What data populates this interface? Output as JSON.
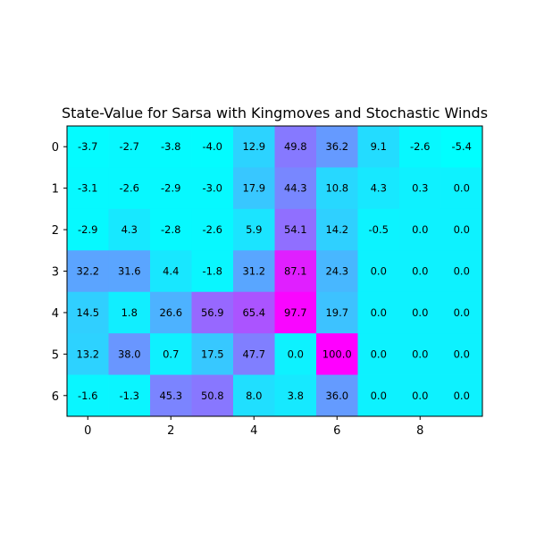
{
  "chart_data": {
    "type": "heatmap",
    "title": "State-Value for Sarsa with Kingmoves and Stochastic Winds",
    "xlabel": "",
    "ylabel": "",
    "colormap": "cool",
    "color_range": [
      -5.4,
      100.0
    ],
    "colors": {
      "low": "#00ffff",
      "high": "#ff00ff",
      "axis": "#000000",
      "text": "#000000"
    },
    "x_ticks": [
      0,
      2,
      4,
      6,
      8
    ],
    "y_ticks": [
      0,
      1,
      2,
      3,
      4,
      5,
      6
    ],
    "x_tick_labels": [
      "0",
      "2",
      "4",
      "6",
      "8"
    ],
    "y_tick_labels": [
      "0",
      "1",
      "2",
      "3",
      "4",
      "5",
      "6"
    ],
    "grid": false,
    "values": [
      [
        -3.7,
        -2.7,
        -3.8,
        -4.0,
        12.9,
        49.8,
        36.2,
        9.1,
        -2.6,
        -5.4
      ],
      [
        -3.1,
        -2.6,
        -2.9,
        -3.0,
        17.9,
        44.3,
        10.8,
        4.3,
        0.3,
        0.0
      ],
      [
        -2.9,
        4.3,
        -2.8,
        -2.6,
        5.9,
        54.1,
        14.2,
        -0.5,
        0.0,
        0.0
      ],
      [
        32.2,
        31.6,
        4.4,
        -1.8,
        31.2,
        87.1,
        24.3,
        0.0,
        0.0,
        0.0
      ],
      [
        14.5,
        1.8,
        26.6,
        56.9,
        65.4,
        97.7,
        19.7,
        0.0,
        0.0,
        0.0
      ],
      [
        13.2,
        38.0,
        0.7,
        17.5,
        47.7,
        0.0,
        100.0,
        0.0,
        0.0,
        0.0
      ],
      [
        -1.6,
        -1.3,
        45.3,
        50.8,
        8.0,
        3.8,
        36.0,
        0.0,
        0.0,
        0.0
      ]
    ],
    "cell_labels": [
      [
        "-3.7",
        "-2.7",
        "-3.8",
        "-4.0",
        "12.9",
        "49.8",
        "36.2",
        "9.1",
        "-2.6",
        "-5.4"
      ],
      [
        "-3.1",
        "-2.6",
        "-2.9",
        "-3.0",
        "17.9",
        "44.3",
        "10.8",
        "4.3",
        "0.3",
        "0.0"
      ],
      [
        "-2.9",
        "4.3",
        "-2.8",
        "-2.6",
        "5.9",
        "54.1",
        "14.2",
        "-0.5",
        "0.0",
        "0.0"
      ],
      [
        "32.2",
        "31.6",
        "4.4",
        "-1.8",
        "31.2",
        "87.1",
        "24.3",
        "0.0",
        "0.0",
        "0.0"
      ],
      [
        "14.5",
        "1.8",
        "26.6",
        "56.9",
        "65.4",
        "97.7",
        "19.7",
        "0.0",
        "0.0",
        "0.0"
      ],
      [
        "13.2",
        "38.0",
        "0.7",
        "17.5",
        "47.7",
        "0.0",
        "100.0",
        "0.0",
        "0.0",
        "0.0"
      ],
      [
        "-1.6",
        "-1.3",
        "45.3",
        "50.8",
        "8.0",
        "3.8",
        "36.0",
        "0.0",
        "0.0",
        "0.0"
      ]
    ]
  }
}
